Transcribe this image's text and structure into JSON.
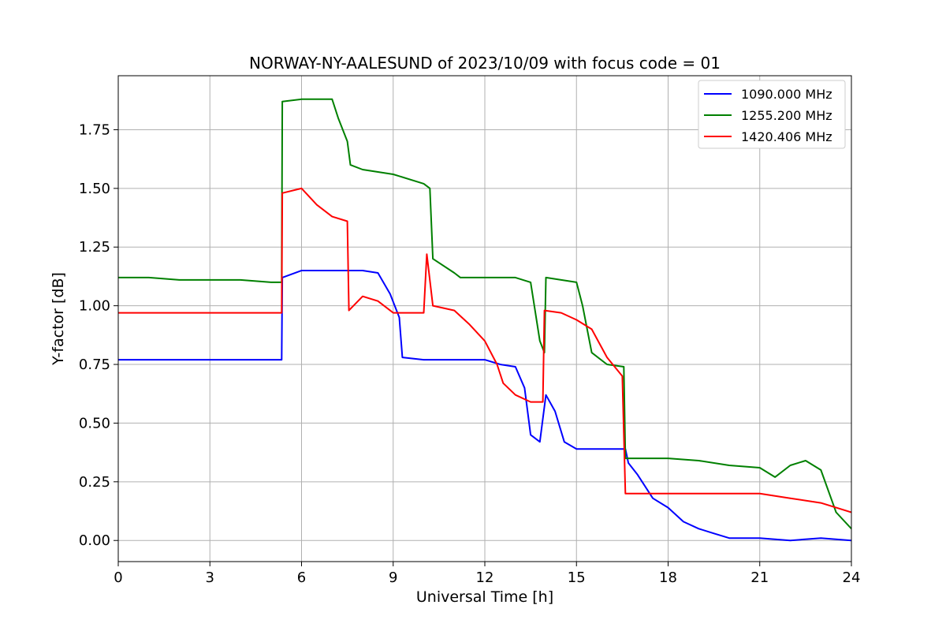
{
  "chart_data": {
    "type": "line",
    "title": "NORWAY-NY-AALESUND of 2023/10/09 with focus code = 01",
    "xlabel": "Universal Time [h]",
    "ylabel": "Y-factor [dB]",
    "xlim": [
      0,
      24
    ],
    "ylim": [
      -0.09,
      1.98
    ],
    "xticks": [
      0,
      3,
      6,
      9,
      12,
      15,
      18,
      21,
      24
    ],
    "xtick_labels": [
      "0",
      "3",
      "6",
      "9",
      "12",
      "15",
      "18",
      "21",
      "24"
    ],
    "yticks": [
      0.0,
      0.25,
      0.5,
      0.75,
      1.0,
      1.25,
      1.5,
      1.75
    ],
    "ytick_labels": [
      "0.00",
      "0.25",
      "0.50",
      "0.75",
      "1.00",
      "1.25",
      "1.50",
      "1.75"
    ],
    "grid": true,
    "legend_position": "top-right",
    "series": [
      {
        "name": "1090.000 MHz",
        "color": "#0000ff",
        "x": [
          0,
          5.35,
          5.37,
          6.0,
          7.0,
          8.0,
          8.5,
          8.9,
          9.2,
          9.3,
          10.0,
          11.0,
          12.0,
          12.5,
          13.0,
          13.3,
          13.5,
          13.8,
          14.0,
          14.3,
          14.6,
          15.0,
          16.0,
          16.6,
          16.7,
          17.0,
          17.5,
          18.0,
          18.5,
          19.0,
          19.5,
          20.0,
          21.0,
          22.0,
          23.0,
          24.0
        ],
        "y": [
          0.77,
          0.77,
          1.12,
          1.15,
          1.15,
          1.15,
          1.14,
          1.05,
          0.95,
          0.78,
          0.77,
          0.77,
          0.77,
          0.75,
          0.74,
          0.65,
          0.45,
          0.42,
          0.62,
          0.55,
          0.42,
          0.39,
          0.39,
          0.39,
          0.33,
          0.28,
          0.18,
          0.14,
          0.08,
          0.05,
          0.03,
          0.01,
          0.01,
          0.0,
          0.01,
          0.0
        ]
      },
      {
        "name": "1255.200 MHz",
        "color": "#008000",
        "x": [
          0,
          1.0,
          2.0,
          3.0,
          4.0,
          5.0,
          5.35,
          5.37,
          6.0,
          7.0,
          7.2,
          7.5,
          7.6,
          8.0,
          9.0,
          10.0,
          10.2,
          10.3,
          11.0,
          11.2,
          12.0,
          13.0,
          13.5,
          13.8,
          13.95,
          14.0,
          15.0,
          15.2,
          15.5,
          16.0,
          16.55,
          16.6,
          17.0,
          18.0,
          19.0,
          20.0,
          21.0,
          21.5,
          22.0,
          22.5,
          23.0,
          23.5,
          24.0
        ],
        "y": [
          1.12,
          1.12,
          1.11,
          1.11,
          1.11,
          1.1,
          1.1,
          1.87,
          1.88,
          1.88,
          1.8,
          1.7,
          1.6,
          1.58,
          1.56,
          1.52,
          1.5,
          1.2,
          1.14,
          1.12,
          1.12,
          1.12,
          1.1,
          0.85,
          0.8,
          1.12,
          1.1,
          1.0,
          0.8,
          0.75,
          0.74,
          0.35,
          0.35,
          0.35,
          0.34,
          0.32,
          0.31,
          0.27,
          0.32,
          0.34,
          0.3,
          0.12,
          0.05
        ]
      },
      {
        "name": "1420.406 MHz",
        "color": "#ff0000",
        "x": [
          0,
          1.0,
          2.0,
          3.0,
          4.0,
          5.0,
          5.35,
          5.37,
          6.0,
          6.5,
          7.0,
          7.5,
          7.55,
          8.0,
          8.5,
          9.0,
          9.5,
          10.0,
          10.1,
          10.3,
          11.0,
          11.5,
          12.0,
          12.4,
          12.6,
          13.0,
          13.5,
          13.9,
          13.95,
          14.5,
          15.0,
          15.5,
          16.0,
          16.5,
          16.6,
          17.0,
          18.0,
          19.0,
          20.0,
          21.0,
          22.0,
          23.0,
          24.0
        ],
        "y": [
          0.97,
          0.97,
          0.97,
          0.97,
          0.97,
          0.97,
          0.97,
          1.48,
          1.5,
          1.43,
          1.38,
          1.36,
          0.98,
          1.04,
          1.02,
          0.97,
          0.97,
          0.97,
          1.22,
          1.0,
          0.98,
          0.92,
          0.85,
          0.75,
          0.67,
          0.62,
          0.59,
          0.59,
          0.98,
          0.97,
          0.94,
          0.9,
          0.78,
          0.7,
          0.2,
          0.2,
          0.2,
          0.2,
          0.2,
          0.2,
          0.18,
          0.16,
          0.12
        ]
      }
    ]
  }
}
